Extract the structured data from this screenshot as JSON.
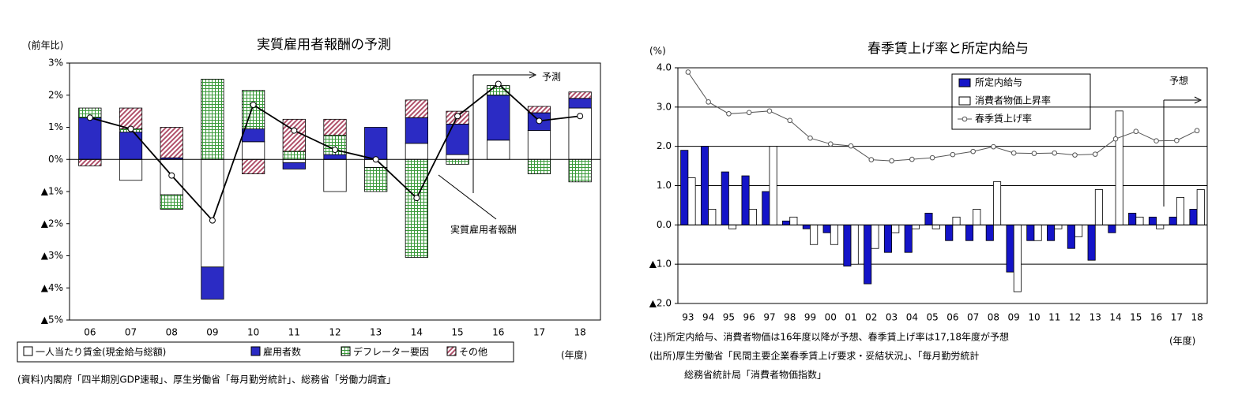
{
  "chart_data": [
    {
      "type": "bar",
      "stacked": true,
      "title": "実質雇用者報酬の予測",
      "y_label": "(前年比)",
      "x_label": "(年度)",
      "annotation": "予測",
      "legend": "bottom",
      "note": "(資料)内閣府「四半期別GDP速報」、厚生労働省「毎月勤労統計」、総務省「労働力調査」",
      "categories": [
        "06",
        "07",
        "08",
        "09",
        "10",
        "11",
        "12",
        "13",
        "14",
        "15",
        "16",
        "17",
        "18"
      ],
      "ylim": [
        -5,
        3
      ],
      "yticks": [
        {
          "value": 3,
          "label": "3%"
        },
        {
          "value": 2,
          "label": "2%"
        },
        {
          "value": 1,
          "label": "1%"
        },
        {
          "value": 0,
          "label": "0%"
        },
        {
          "value": -1,
          "label": "▲1%"
        },
        {
          "value": -2,
          "label": "▲2%"
        },
        {
          "value": -3,
          "label": "▲3%"
        },
        {
          "value": -4,
          "label": "▲4%"
        },
        {
          "value": -5,
          "label": "▲5%"
        }
      ],
      "series": [
        {
          "name": "一人当たり賃金(現金給与総額)",
          "color": "#ffffff",
          "pattern": "solid",
          "values": [
            0,
            -0.65,
            -1.1,
            -3.35,
            0.55,
            -0.1,
            -1.0,
            -0.25,
            0.5,
            0.15,
            0.6,
            0.9,
            1.6
          ]
        },
        {
          "name": "雇用者数",
          "color": "#2b2bc4",
          "pattern": "solid",
          "values": [
            1.3,
            0.85,
            0.05,
            -1.0,
            0.4,
            -0.2,
            0.15,
            1.0,
            0.8,
            0.95,
            1.4,
            0.55,
            0.3
          ]
        },
        {
          "name": "デフレーター要因",
          "color": "#3a9a3a",
          "pattern": "grid",
          "values": [
            0.3,
            0.1,
            -0.45,
            2.5,
            1.2,
            0.25,
            0.6,
            -0.75,
            -3.05,
            -0.15,
            0.3,
            -0.45,
            -0.7
          ]
        },
        {
          "name": "その他",
          "color": "#b0506a",
          "pattern": "diagonal",
          "values": [
            -0.2,
            0.65,
            0.95,
            0,
            -0.45,
            1.0,
            0.5,
            0,
            0.55,
            0.4,
            0,
            0.2,
            0.2
          ]
        },
        {
          "name": "実質雇用者報酬",
          "type": "line",
          "color": "#000000",
          "values": [
            1.3,
            0.95,
            -0.5,
            -1.9,
            1.7,
            0.9,
            0.3,
            0,
            -1.2,
            1.35,
            2.35,
            1.2,
            1.35
          ]
        }
      ]
    },
    {
      "type": "bar",
      "stacked": false,
      "title": "春季賃上げ率と所定内給与",
      "y_label": "(%)",
      "x_label": "(年度)",
      "annotation": "予想",
      "legend": "top-center",
      "grid": true,
      "notes": [
        "(注)所定内給与、消費者物価は16年度以降が予想、春季賃上げ率は17,18年度が予想",
        "(出所)厚生労働省「民間主要企業春季賃上げ要求・妥結状況」、「毎月勤労統計",
        "総務省統計局「消費者物価指数」"
      ],
      "categories": [
        "93",
        "94",
        "95",
        "96",
        "97",
        "98",
        "99",
        "00",
        "01",
        "02",
        "03",
        "04",
        "05",
        "06",
        "07",
        "08",
        "09",
        "10",
        "11",
        "12",
        "13",
        "14",
        "15",
        "16",
        "17",
        "18"
      ],
      "ylim": [
        -2,
        4
      ],
      "yticks": [
        {
          "value": 4,
          "label": "4.0"
        },
        {
          "value": 3,
          "label": "3.0"
        },
        {
          "value": 2,
          "label": "2.0"
        },
        {
          "value": 1,
          "label": "1.0"
        },
        {
          "value": 0,
          "label": "0.0"
        },
        {
          "value": -1,
          "label": "▲1.0"
        },
        {
          "value": -2,
          "label": "▲2.0"
        }
      ],
      "series": [
        {
          "name": "所定内給与",
          "color": "#1414c8",
          "pattern": "solid",
          "values": [
            1.9,
            2.0,
            1.35,
            1.25,
            0.85,
            0.1,
            -0.1,
            -0.2,
            -1.05,
            -1.5,
            -0.7,
            -0.7,
            0.3,
            -0.4,
            -0.4,
            -0.4,
            -1.2,
            -0.4,
            -0.4,
            -0.6,
            -0.9,
            -0.2,
            0.3,
            0.2,
            0.2,
            0.4
          ]
        },
        {
          "name": "消費者物価上昇率",
          "color": "#ffffff",
          "pattern": "solid",
          "values": [
            1.2,
            0.4,
            -0.1,
            0.4,
            2.0,
            0.2,
            -0.5,
            -0.5,
            -1.0,
            -0.6,
            -0.2,
            -0.1,
            -0.1,
            0.2,
            0.4,
            1.1,
            -1.7,
            -0.4,
            -0.1,
            -0.3,
            0.9,
            2.9,
            0.2,
            -0.1,
            0.7,
            0.9
          ]
        },
        {
          "name": "春季賃上げ率",
          "type": "line",
          "color": "#555555",
          "values": [
            3.89,
            3.13,
            2.83,
            2.86,
            2.9,
            2.66,
            2.21,
            2.06,
            2.01,
            1.66,
            1.63,
            1.67,
            1.71,
            1.79,
            1.87,
            1.99,
            1.83,
            1.82,
            1.83,
            1.78,
            1.8,
            2.19,
            2.38,
            2.14,
            2.15,
            2.4
          ]
        }
      ]
    }
  ]
}
